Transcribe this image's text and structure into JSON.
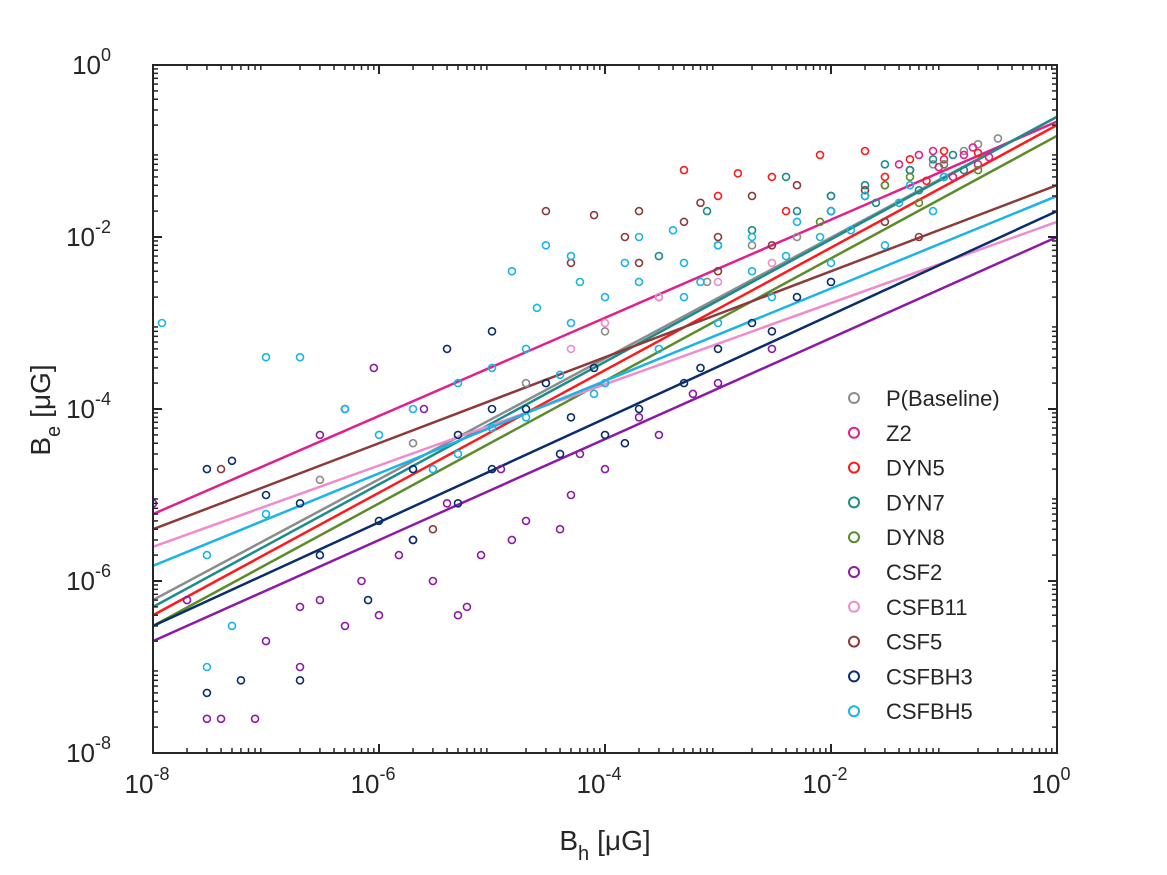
{
  "chart_data": {
    "type": "scatter",
    "title": "",
    "xlabel": {
      "base": "B",
      "sub": "h",
      "unit": "[μG]"
    },
    "ylabel": {
      "base": "B",
      "sub": "e",
      "unit": "[μG]"
    },
    "xscale": "log",
    "yscale": "log",
    "xlim": [
      1e-08,
      1
    ],
    "ylim": [
      1e-08,
      1
    ],
    "x_ticks": [
      {
        "value": 1e-08,
        "base": "10",
        "exp": "-8"
      },
      {
        "value": 1e-06,
        "base": "10",
        "exp": "-6"
      },
      {
        "value": 0.0001,
        "base": "10",
        "exp": "-4"
      },
      {
        "value": 0.01,
        "base": "10",
        "exp": "-2"
      },
      {
        "value": 1,
        "base": "10",
        "exp": "0"
      }
    ],
    "y_ticks": [
      {
        "value": 1e-08,
        "base": "10",
        "exp": "-8"
      },
      {
        "value": 1e-06,
        "base": "10",
        "exp": "-6"
      },
      {
        "value": 0.0001,
        "base": "10",
        "exp": "-4"
      },
      {
        "value": 0.01,
        "base": "10",
        "exp": "-2"
      },
      {
        "value": 1,
        "base": "10",
        "exp": "0"
      }
    ],
    "grid": false,
    "legend_position": "bottom-right",
    "series": [
      {
        "name": "P(Baseline)",
        "color": "#8c8c8c",
        "fit": {
          "x": [
            1e-08,
            1
          ],
          "y": [
            6e-07,
            0.25
          ]
        },
        "points": [
          [
            0.3,
            0.14
          ],
          [
            0.15,
            0.1
          ],
          [
            0.05,
            0.06
          ],
          [
            0.01,
            0.03
          ],
          [
            0.002,
            0.008
          ],
          [
            0.0003,
            0.002
          ],
          [
            2e-05,
            0.0002
          ],
          [
            2e-06,
            4e-05
          ],
          [
            3e-07,
            1.5e-05
          ],
          [
            0.2,
            0.12
          ],
          [
            0.08,
            0.07
          ],
          [
            0.02,
            0.03
          ],
          [
            0.005,
            0.01
          ],
          [
            0.0008,
            0.003
          ],
          [
            0.0001,
            0.0008
          ]
        ]
      },
      {
        "name": "Z2",
        "color": "#e0208c",
        "fit": {
          "x": [
            1e-08,
            1
          ],
          "y": [
            6e-06,
            0.22
          ]
        },
        "points": [
          [
            0.15,
            0.09
          ],
          [
            0.1,
            0.08
          ],
          [
            0.2,
            0.07
          ],
          [
            0.05,
            0.06
          ],
          [
            0.08,
            0.1
          ],
          [
            0.12,
            0.05
          ],
          [
            0.03,
            0.04
          ],
          [
            0.18,
            0.11
          ],
          [
            0.06,
            0.09
          ],
          [
            0.25,
            0.085
          ],
          [
            0.04,
            0.07
          ],
          [
            0.09,
            0.065
          ]
        ]
      },
      {
        "name": "DYN5",
        "color": "#ff1a1a",
        "fit": {
          "x": [
            1e-08,
            1
          ],
          "y": [
            4e-07,
            0.2
          ]
        },
        "points": [
          [
            0.02,
            0.1
          ],
          [
            0.008,
            0.09
          ],
          [
            0.003,
            0.05
          ],
          [
            0.001,
            0.03
          ],
          [
            0.0005,
            0.06
          ],
          [
            0.05,
            0.08
          ],
          [
            0.1,
            0.1
          ],
          [
            0.03,
            0.05
          ],
          [
            0.004,
            0.02
          ],
          [
            0.0015,
            0.055
          ],
          [
            0.2,
            0.095
          ],
          [
            0.07,
            0.045
          ]
        ]
      },
      {
        "name": "DYN7",
        "color": "#1a8c8c",
        "fit": {
          "x": [
            1e-08,
            1
          ],
          "y": [
            5e-07,
            0.25
          ]
        },
        "points": [
          [
            0.05,
            0.06
          ],
          [
            0.1,
            0.05
          ],
          [
            0.02,
            0.04
          ],
          [
            0.01,
            0.03
          ],
          [
            0.005,
            0.02
          ],
          [
            0.002,
            0.012
          ],
          [
            0.001,
            0.008
          ],
          [
            0.03,
            0.07
          ],
          [
            0.08,
            0.08
          ],
          [
            0.15,
            0.06
          ],
          [
            0.004,
            0.05
          ],
          [
            0.0008,
            0.02
          ],
          [
            0.0003,
            0.006
          ],
          [
            0.06,
            0.035
          ],
          [
            0.12,
            0.09
          ],
          [
            0.025,
            0.025
          ]
        ]
      },
      {
        "name": "DYN8",
        "color": "#5a8c2a",
        "fit": {
          "x": [
            1e-08,
            1
          ],
          "y": [
            3e-07,
            0.15
          ]
        },
        "points": [
          [
            0.05,
            0.05
          ],
          [
            0.02,
            0.03
          ],
          [
            0.1,
            0.07
          ],
          [
            0.01,
            0.02
          ],
          [
            0.03,
            0.04
          ],
          [
            0.008,
            0.015
          ],
          [
            0.06,
            0.025
          ],
          [
            0.2,
            0.06
          ]
        ]
      },
      {
        "name": "CSF2",
        "color": "#8c1aa6",
        "fit": {
          "x": [
            1e-08,
            1
          ],
          "y": [
            2e-07,
            0.01
          ]
        },
        "points": [
          [
            3e-08,
            2.5e-08
          ],
          [
            4e-08,
            2.5e-08
          ],
          [
            8e-08,
            2.5e-08
          ],
          [
            2e-07,
            1e-07
          ],
          [
            5e-07,
            3e-07
          ],
          [
            1e-06,
            4e-07
          ],
          [
            3e-06,
            1e-06
          ],
          [
            8e-06,
            2e-06
          ],
          [
            2e-05,
            5e-06
          ],
          [
            5e-05,
            1e-05
          ],
          [
            0.0001,
            2e-05
          ],
          [
            0.0003,
            5e-05
          ],
          [
            0.001,
            0.0002
          ],
          [
            0.003,
            0.0005
          ],
          [
            1e-07,
            2e-07
          ],
          [
            3e-07,
            6e-07
          ],
          [
            2e-06,
            3e-06
          ],
          [
            6e-06,
            5e-07
          ],
          [
            1.5e-05,
            3e-06
          ],
          [
            4e-05,
            4e-06
          ],
          [
            1e-08,
            8e-06
          ],
          [
            2e-08,
            6e-07
          ],
          [
            2e-07,
            5e-07
          ],
          [
            7e-07,
            1e-06
          ],
          [
            4e-06,
            8e-06
          ],
          [
            1.2e-05,
            2e-05
          ],
          [
            6e-05,
            3e-05
          ],
          [
            0.0002,
            8e-05
          ],
          [
            0.0006,
            0.00015
          ],
          [
            5e-06,
            4e-07
          ],
          [
            9e-07,
            0.0003
          ],
          [
            3e-07,
            5e-05
          ],
          [
            2.5e-06,
            0.0001
          ],
          [
            1.5e-06,
            2e-06
          ]
        ]
      },
      {
        "name": "CSFB11",
        "color": "#f08ccc",
        "fit": {
          "x": [
            1e-08,
            1
          ],
          "y": [
            2.5e-06,
            0.015
          ]
        },
        "points": [
          [
            5e-05,
            0.0005
          ],
          [
            0.0001,
            0.001
          ],
          [
            0.0003,
            0.002
          ],
          [
            0.001,
            0.003
          ],
          [
            0.003,
            0.005
          ]
        ]
      },
      {
        "name": "CSF5",
        "color": "#8c3a3a",
        "fit": {
          "x": [
            1e-08,
            1
          ],
          "y": [
            4e-06,
            0.04
          ]
        },
        "points": [
          [
            3e-05,
            0.02
          ],
          [
            8e-05,
            0.018
          ],
          [
            0.0002,
            0.02
          ],
          [
            0.0005,
            0.015
          ],
          [
            0.001,
            0.01
          ],
          [
            0.003,
            0.008
          ],
          [
            0.01,
            0.02
          ],
          [
            0.03,
            0.015
          ],
          [
            5e-05,
            0.005
          ],
          [
            0.0002,
            0.005
          ],
          [
            0.001,
            0.004
          ],
          [
            0.005,
            0.04
          ],
          [
            0.02,
            0.035
          ],
          [
            3e-06,
            4e-06
          ],
          [
            4e-08,
            2e-05
          ],
          [
            0.00015,
            0.01
          ],
          [
            0.0007,
            0.025
          ],
          [
            0.002,
            0.03
          ],
          [
            0.06,
            0.01
          ]
        ]
      },
      {
        "name": "CSFBH3",
        "color": "#0a2d6e",
        "fit": {
          "x": [
            1e-08,
            1
          ],
          "y": [
            3e-07,
            0.02
          ]
        },
        "points": [
          [
            3e-08,
            5e-08
          ],
          [
            5e-08,
            2.5e-05
          ],
          [
            3e-08,
            2e-05
          ],
          [
            1e-07,
            1e-05
          ],
          [
            2e-07,
            8e-06
          ],
          [
            5e-07,
            0.0001
          ],
          [
            1e-06,
            5e-06
          ],
          [
            2e-06,
            2e-05
          ],
          [
            5e-06,
            5e-05
          ],
          [
            1e-05,
            0.0001
          ],
          [
            2e-05,
            0.0001
          ],
          [
            5e-05,
            8e-05
          ],
          [
            0.0001,
            5e-05
          ],
          [
            0.0002,
            0.0001
          ],
          [
            0.0005,
            0.0002
          ],
          [
            0.001,
            0.0005
          ],
          [
            0.002,
            0.001
          ],
          [
            0.005,
            0.002
          ],
          [
            0.01,
            0.003
          ],
          [
            3e-05,
            0.0002
          ],
          [
            8e-05,
            0.0003
          ],
          [
            2e-06,
            3e-06
          ],
          [
            5e-06,
            8e-06
          ],
          [
            1e-05,
            2e-05
          ],
          [
            3e-07,
            2e-06
          ],
          [
            8e-07,
            6e-07
          ],
          [
            6e-08,
            7e-08
          ],
          [
            2e-07,
            7e-08
          ],
          [
            4e-06,
            0.0005
          ],
          [
            1e-05,
            0.0008
          ],
          [
            4e-05,
            3e-05
          ],
          [
            0.00015,
            4e-05
          ],
          [
            0.0007,
            0.0003
          ],
          [
            0.003,
            0.0008
          ]
        ]
      },
      {
        "name": "CSFBH5",
        "color": "#1ab4e6",
        "fit": {
          "x": [
            1e-08,
            1
          ],
          "y": [
            1.5e-06,
            0.03
          ]
        },
        "points": [
          [
            1.2e-08,
            0.001
          ],
          [
            1e-07,
            0.0004
          ],
          [
            2e-07,
            0.0004
          ],
          [
            5e-08,
            3e-07
          ],
          [
            3e-08,
            1e-07
          ],
          [
            5e-07,
            0.0001
          ],
          [
            1e-06,
            5e-05
          ],
          [
            2e-06,
            0.0001
          ],
          [
            5e-06,
            0.0002
          ],
          [
            1e-05,
            0.0003
          ],
          [
            2e-05,
            0.0005
          ],
          [
            5e-05,
            0.001
          ],
          [
            0.0001,
            0.002
          ],
          [
            0.0002,
            0.003
          ],
          [
            0.0005,
            0.005
          ],
          [
            0.001,
            0.008
          ],
          [
            0.002,
            0.01
          ],
          [
            0.005,
            0.015
          ],
          [
            0.01,
            0.02
          ],
          [
            0.02,
            0.03
          ],
          [
            0.05,
            0.04
          ],
          [
            0.1,
            0.05
          ],
          [
            3e-05,
            0.008
          ],
          [
            5e-05,
            0.006
          ],
          [
            0.0002,
            0.01
          ],
          [
            0.0004,
            0.012
          ],
          [
            0.0001,
            0.0002
          ],
          [
            0.0003,
            0.0005
          ],
          [
            0.001,
            0.001
          ],
          [
            0.003,
            0.002
          ],
          [
            0.01,
            0.005
          ],
          [
            0.03,
            0.008
          ],
          [
            0.08,
            0.02
          ],
          [
            3e-08,
            2e-06
          ],
          [
            1e-07,
            6e-06
          ],
          [
            5e-06,
            3e-05
          ],
          [
            2e-05,
            8e-05
          ],
          [
            8e-05,
            0.00015
          ],
          [
            0.0005,
            0.002
          ],
          [
            0.002,
            0.004
          ],
          [
            0.008,
            0.01
          ],
          [
            1.5e-05,
            0.004
          ],
          [
            2.5e-05,
            0.0015
          ],
          [
            6e-05,
            0.003
          ],
          [
            0.00015,
            0.005
          ],
          [
            0.0007,
            0.003
          ],
          [
            0.004,
            0.006
          ],
          [
            0.015,
            0.012
          ],
          [
            0.04,
            0.025
          ],
          [
            3e-06,
            2e-05
          ],
          [
            1e-05,
            6e-05
          ],
          [
            4e-05,
            0.00025
          ]
        ]
      }
    ]
  }
}
